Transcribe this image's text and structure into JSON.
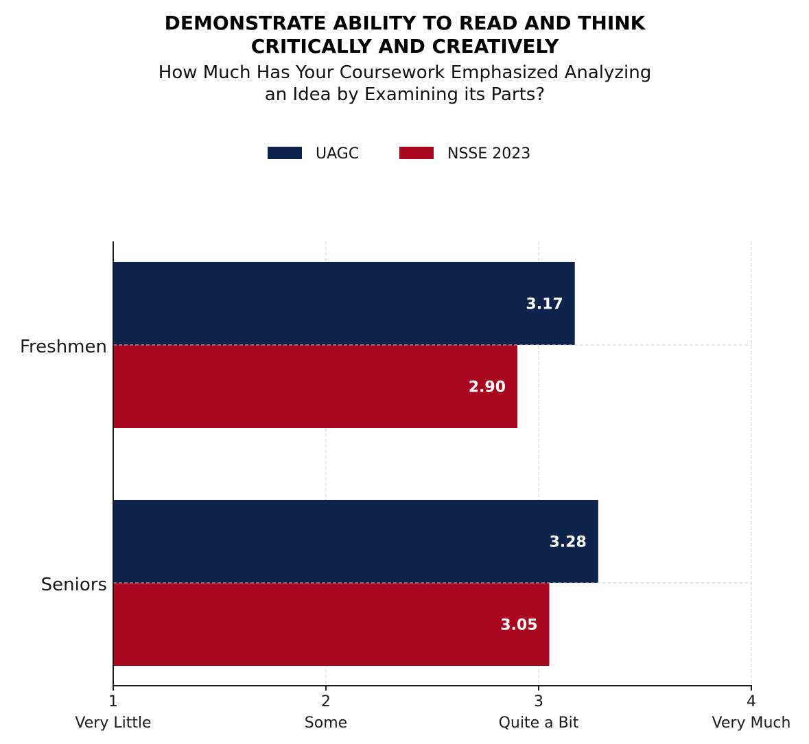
{
  "chart_data": {
    "type": "bar",
    "orientation": "horizontal",
    "title": "DEMONSTRATE ABILITY TO READ AND THINK CRITICALLY AND CREATIVELY",
    "title_lines": [
      "DEMONSTRATE ABILITY TO READ AND THINK",
      "CRITICALLY AND CREATIVELY"
    ],
    "subtitle": "How Much Has Your Coursework Emphasized Analyzing an Idea by Examining its Parts?",
    "subtitle_lines": [
      "How Much Has Your Coursework Emphasized Analyzing",
      "an Idea by Examining its Parts?"
    ],
    "categories": [
      "Freshmen",
      "Seniors"
    ],
    "series": [
      {
        "name": "UAGC",
        "color": "#0d234b",
        "values": [
          3.17,
          3.28
        ],
        "labels": [
          "3.17",
          "3.28"
        ]
      },
      {
        "name": "NSSE 2023",
        "color": "#a90620",
        "values": [
          2.9,
          3.05
        ],
        "labels": [
          "2.90",
          "3.05"
        ]
      }
    ],
    "xlim": [
      1,
      4
    ],
    "x_ticks": [
      {
        "value": 1,
        "label": "1",
        "sublabel": "Very Little"
      },
      {
        "value": 2,
        "label": "2",
        "sublabel": "Some"
      },
      {
        "value": 3,
        "label": "3",
        "sublabel": "Quite a Bit"
      },
      {
        "value": 4,
        "label": "4",
        "sublabel": "Very Much"
      }
    ],
    "grid": true,
    "legend_position": "top-center"
  }
}
